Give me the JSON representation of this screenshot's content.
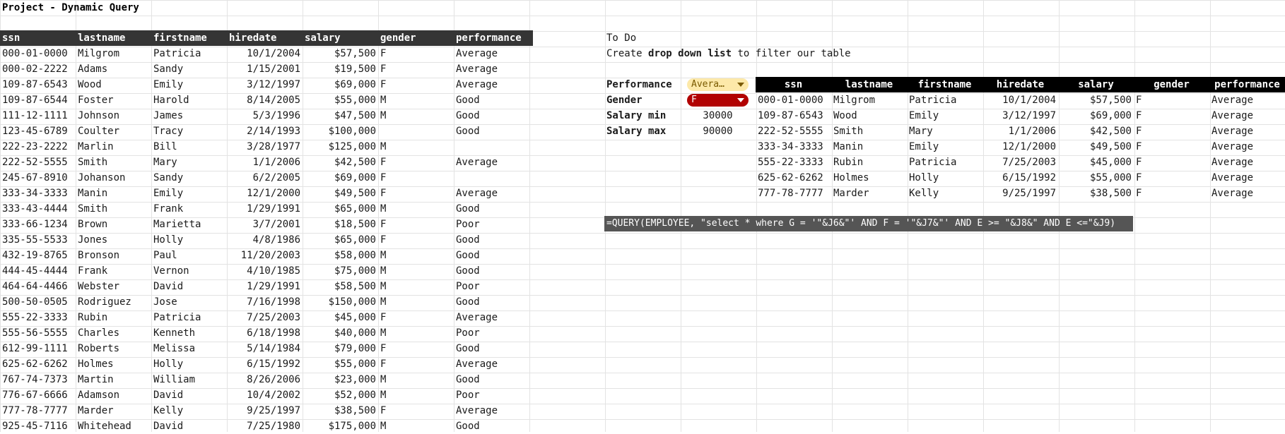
{
  "sheet_title": "Project - Dynamic Query",
  "main_table": {
    "headers": [
      "ssn",
      "lastname",
      "firstname",
      "hiredate",
      "salary",
      "gender",
      "performance"
    ],
    "rows": [
      [
        "000-01-0000",
        "Milgrom",
        "Patricia",
        "10/1/2004",
        "$57,500",
        "F",
        "Average"
      ],
      [
        "000-02-2222",
        "Adams",
        "Sandy",
        "1/15/2001",
        "$19,500",
        "F",
        "Average"
      ],
      [
        "109-87-6543",
        "Wood",
        "Emily",
        "3/12/1997",
        "$69,000",
        "F",
        "Average"
      ],
      [
        "109-87-6544",
        "Foster",
        "Harold",
        "8/14/2005",
        "$55,000",
        "M",
        "Good"
      ],
      [
        "111-12-1111",
        "Johnson",
        "James",
        "5/3/1996",
        "$47,500",
        "M",
        "Good"
      ],
      [
        "123-45-6789",
        "Coulter",
        "Tracy",
        "2/14/1993",
        "$100,000",
        "",
        "Good"
      ],
      [
        "222-23-2222",
        "Marlin",
        "Bill",
        "3/28/1977",
        "$125,000",
        "M",
        ""
      ],
      [
        "222-52-5555",
        "Smith",
        "Mary",
        "1/1/2006",
        "$42,500",
        "F",
        "Average"
      ],
      [
        "245-67-8910",
        "Johanson",
        "Sandy",
        "6/2/2005",
        "$69,000",
        "F",
        ""
      ],
      [
        "333-34-3333",
        "Manin",
        "Emily",
        "12/1/2000",
        "$49,500",
        "F",
        "Average"
      ],
      [
        "333-43-4444",
        "Smith",
        "Frank",
        "1/29/1991",
        "$65,000",
        "M",
        "Good"
      ],
      [
        "333-66-1234",
        "Brown",
        "Marietta",
        "3/7/2001",
        "$18,500",
        "F",
        "Poor"
      ],
      [
        "335-55-5533",
        "Jones",
        "Holly",
        "4/8/1986",
        "$65,000",
        "F",
        "Good"
      ],
      [
        "432-19-8765",
        "Bronson",
        "Paul",
        "11/20/2003",
        "$58,000",
        "M",
        "Good"
      ],
      [
        "444-45-4444",
        "Frank",
        "Vernon",
        "4/10/1985",
        "$75,000",
        "M",
        "Good"
      ],
      [
        "464-64-4466",
        "Webster",
        "David",
        "1/29/1991",
        "$58,500",
        "M",
        "Poor"
      ],
      [
        "500-50-0505",
        "Rodriguez",
        "Jose",
        "7/16/1998",
        "$150,000",
        "M",
        "Good"
      ],
      [
        "555-22-3333",
        "Rubin",
        "Patricia",
        "7/25/2003",
        "$45,000",
        "F",
        "Average"
      ],
      [
        "555-56-5555",
        "Charles",
        "Kenneth",
        "6/18/1998",
        "$40,000",
        "M",
        "Poor"
      ],
      [
        "612-99-1111",
        "Roberts",
        "Melissa",
        "5/14/1984",
        "$79,000",
        "F",
        "Good"
      ],
      [
        "625-62-6262",
        "Holmes",
        "Holly",
        "6/15/1992",
        "$55,000",
        "F",
        "Average"
      ],
      [
        "767-74-7373",
        "Martin",
        "William",
        "8/26/2006",
        "$23,000",
        "M",
        "Good"
      ],
      [
        "776-67-6666",
        "Adamson",
        "David",
        "10/4/2002",
        "$52,000",
        "M",
        "Poor"
      ],
      [
        "777-78-7777",
        "Marder",
        "Kelly",
        "9/25/1997",
        "$38,500",
        "F",
        "Average"
      ],
      [
        "925-45-7116",
        "Whitehead",
        "David",
        "7/25/1980",
        "$175,000",
        "M",
        "Good"
      ]
    ]
  },
  "todo": {
    "heading": "To Do",
    "line_prefix": "Create ",
    "line_bold": "drop down list",
    "line_suffix": " to filter our table"
  },
  "filters": {
    "performance_label": "Performance",
    "performance_value": "Avera…",
    "gender_label": "Gender",
    "gender_value": "F",
    "salary_min_label": "Salary min",
    "salary_min_value": "30000",
    "salary_max_label": "Salary max",
    "salary_max_value": "90000"
  },
  "result_table": {
    "headers": [
      "ssn",
      "lastname",
      "firstname",
      "hiredate",
      "salary",
      "gender",
      "performance"
    ],
    "rows": [
      [
        "000-01-0000",
        "Milgrom",
        "Patricia",
        "10/1/2004",
        "$57,500",
        "F",
        "Average"
      ],
      [
        "109-87-6543",
        "Wood",
        "Emily",
        "3/12/1997",
        "$69,000",
        "F",
        "Average"
      ],
      [
        "222-52-5555",
        "Smith",
        "Mary",
        "1/1/2006",
        "$42,500",
        "F",
        "Average"
      ],
      [
        "333-34-3333",
        "Manin",
        "Emily",
        "12/1/2000",
        "$49,500",
        "F",
        "Average"
      ],
      [
        "555-22-3333",
        "Rubin",
        "Patricia",
        "7/25/2003",
        "$45,000",
        "F",
        "Average"
      ],
      [
        "625-62-6262",
        "Holmes",
        "Holly",
        "6/15/1992",
        "$55,000",
        "F",
        "Average"
      ],
      [
        "777-78-7777",
        "Marder",
        "Kelly",
        "9/25/1997",
        "$38,500",
        "F",
        "Average"
      ]
    ]
  },
  "formula": "=QUERY(EMPLOYEE, \"select * where G = '\"&J6&\"' AND F = '\"&J7&\"' AND E >= \"&J8&\" AND E <=\"&J9)",
  "colors": {
    "header_dark": "#353535",
    "header_black": "#000000",
    "chip_performance_bg": "#fde9a9",
    "chip_performance_text": "#7a5a00",
    "chip_gender_bg": "#b10202",
    "chip_gender_text": "#ffffff",
    "formula_bg": "#555555"
  }
}
